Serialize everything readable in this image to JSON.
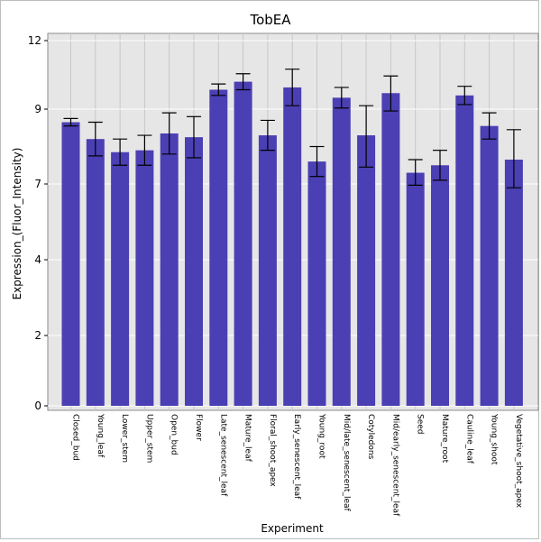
{
  "chart_data": {
    "type": "bar",
    "title": "TobEA",
    "xlabel": "Experiment",
    "ylabel": "Expression_(Fluor_Intensity)",
    "yticks": [
      "0",
      "2",
      "4",
      "7",
      "9",
      "12"
    ],
    "categories": [
      "Closed_bud",
      "Young_leaf",
      "Lower_stem",
      "Upper_stem",
      "Open_bud",
      "Flower",
      "Late_senescent_leaf",
      "Mature_leaf",
      "Floral_shoot_apex",
      "Early_senescent_leaf",
      "Young_root",
      "Mid/late_senescent_leaf",
      "Cotyledons",
      "Mid/early_senescent_leaf",
      "Seed",
      "Mature_root",
      "Cauline_leaf",
      "Young_shoot",
      "Vegetative_shoot_apex"
    ],
    "values": [
      8.65,
      8.2,
      7.85,
      7.9,
      8.35,
      8.25,
      9.85,
      10.2,
      8.3,
      9.95,
      7.6,
      9.5,
      8.3,
      9.7,
      7.3,
      7.5,
      9.6,
      8.55,
      7.65
    ],
    "errors": [
      0.1,
      0.45,
      0.35,
      0.4,
      0.55,
      0.55,
      0.25,
      0.35,
      0.4,
      0.8,
      0.4,
      0.45,
      0.85,
      0.75,
      0.35,
      0.4,
      0.4,
      0.35,
      0.8
    ],
    "bar_color": "#4b3fb4",
    "background_color": "#e6e6e6",
    "grid": true,
    "axis_scale": "nonlinear"
  }
}
